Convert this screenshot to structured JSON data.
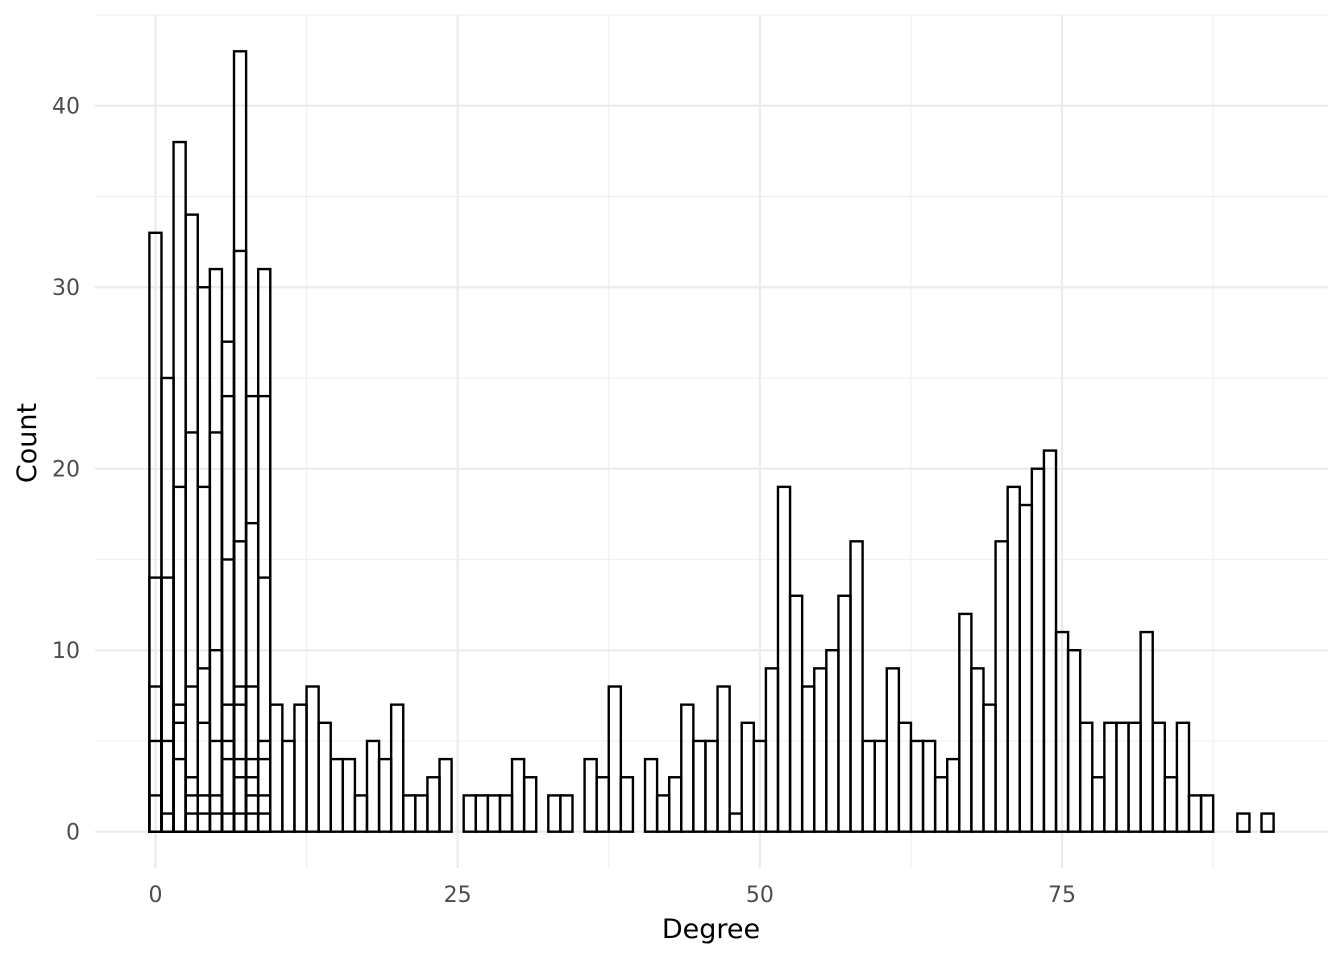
{
  "chart_data": {
    "type": "bar",
    "xlabel": "Degree",
    "ylabel": "Count",
    "xlim": [
      -5,
      97
    ],
    "ylim": [
      -2,
      45
    ],
    "x_ticks": [
      0,
      25,
      50,
      75
    ],
    "x_tick_labels": [
      "0",
      "25",
      "50",
      "75"
    ],
    "y_ticks": [
      0,
      10,
      20,
      30,
      40
    ],
    "y_tick_labels": [
      "0",
      "10",
      "20",
      "30",
      "40"
    ],
    "grid": true,
    "bar_fill": "#ffffff",
    "bar_outline": "#000000",
    "bin_width": 1,
    "bars": [
      {
        "x": 0,
        "y": 33
      },
      {
        "x": 0,
        "y": 14
      },
      {
        "x": 0,
        "y": 8
      },
      {
        "x": 0,
        "y": 5
      },
      {
        "x": 0,
        "y": 2
      },
      {
        "x": 1,
        "y": 25
      },
      {
        "x": 1,
        "y": 14
      },
      {
        "x": 1,
        "y": 5
      },
      {
        "x": 1,
        "y": 1
      },
      {
        "x": 2,
        "y": 38
      },
      {
        "x": 2,
        "y": 19
      },
      {
        "x": 2,
        "y": 7
      },
      {
        "x": 2,
        "y": 6
      },
      {
        "x": 2,
        "y": 4
      },
      {
        "x": 3,
        "y": 34
      },
      {
        "x": 3,
        "y": 22
      },
      {
        "x": 3,
        "y": 8
      },
      {
        "x": 3,
        "y": 3
      },
      {
        "x": 3,
        "y": 2
      },
      {
        "x": 3,
        "y": 1
      },
      {
        "x": 4,
        "y": 30
      },
      {
        "x": 4,
        "y": 19
      },
      {
        "x": 4,
        "y": 9
      },
      {
        "x": 4,
        "y": 6
      },
      {
        "x": 4,
        "y": 2
      },
      {
        "x": 4,
        "y": 1
      },
      {
        "x": 5,
        "y": 31
      },
      {
        "x": 5,
        "y": 22
      },
      {
        "x": 5,
        "y": 10
      },
      {
        "x": 5,
        "y": 5
      },
      {
        "x": 5,
        "y": 2
      },
      {
        "x": 5,
        "y": 1
      },
      {
        "x": 6,
        "y": 27
      },
      {
        "x": 6,
        "y": 24
      },
      {
        "x": 6,
        "y": 15
      },
      {
        "x": 6,
        "y": 7
      },
      {
        "x": 6,
        "y": 5
      },
      {
        "x": 6,
        "y": 4
      },
      {
        "x": 6,
        "y": 1
      },
      {
        "x": 7,
        "y": 43
      },
      {
        "x": 7,
        "y": 32
      },
      {
        "x": 7,
        "y": 16
      },
      {
        "x": 7,
        "y": 8
      },
      {
        "x": 7,
        "y": 7
      },
      {
        "x": 7,
        "y": 4
      },
      {
        "x": 7,
        "y": 3
      },
      {
        "x": 7,
        "y": 1
      },
      {
        "x": 8,
        "y": 24
      },
      {
        "x": 8,
        "y": 17
      },
      {
        "x": 8,
        "y": 8
      },
      {
        "x": 8,
        "y": 4
      },
      {
        "x": 8,
        "y": 3
      },
      {
        "x": 8,
        "y": 2
      },
      {
        "x": 8,
        "y": 1
      },
      {
        "x": 9,
        "y": 31
      },
      {
        "x": 9,
        "y": 24
      },
      {
        "x": 9,
        "y": 14
      },
      {
        "x": 9,
        "y": 5
      },
      {
        "x": 9,
        "y": 4
      },
      {
        "x": 9,
        "y": 2
      },
      {
        "x": 9,
        "y": 1
      },
      {
        "x": 10,
        "y": 7
      },
      {
        "x": 11,
        "y": 5
      },
      {
        "x": 12,
        "y": 7
      },
      {
        "x": 13,
        "y": 8
      },
      {
        "x": 14,
        "y": 6
      },
      {
        "x": 15,
        "y": 4
      },
      {
        "x": 16,
        "y": 4
      },
      {
        "x": 17,
        "y": 2
      },
      {
        "x": 18,
        "y": 5
      },
      {
        "x": 19,
        "y": 4
      },
      {
        "x": 20,
        "y": 7
      },
      {
        "x": 21,
        "y": 2
      },
      {
        "x": 22,
        "y": 2
      },
      {
        "x": 23,
        "y": 3
      },
      {
        "x": 24,
        "y": 4
      },
      {
        "x": 26,
        "y": 2
      },
      {
        "x": 27,
        "y": 2
      },
      {
        "x": 28,
        "y": 2
      },
      {
        "x": 29,
        "y": 2
      },
      {
        "x": 30,
        "y": 4
      },
      {
        "x": 31,
        "y": 3
      },
      {
        "x": 33,
        "y": 2
      },
      {
        "x": 34,
        "y": 2
      },
      {
        "x": 36,
        "y": 4
      },
      {
        "x": 37,
        "y": 3
      },
      {
        "x": 38,
        "y": 8
      },
      {
        "x": 39,
        "y": 3
      },
      {
        "x": 41,
        "y": 4
      },
      {
        "x": 42,
        "y": 2
      },
      {
        "x": 43,
        "y": 3
      },
      {
        "x": 44,
        "y": 7
      },
      {
        "x": 45,
        "y": 5
      },
      {
        "x": 46,
        "y": 5
      },
      {
        "x": 47,
        "y": 8
      },
      {
        "x": 48,
        "y": 1
      },
      {
        "x": 49,
        "y": 6
      },
      {
        "x": 50,
        "y": 5
      },
      {
        "x": 51,
        "y": 9
      },
      {
        "x": 52,
        "y": 19
      },
      {
        "x": 53,
        "y": 13
      },
      {
        "x": 54,
        "y": 8
      },
      {
        "x": 55,
        "y": 9
      },
      {
        "x": 56,
        "y": 10
      },
      {
        "x": 57,
        "y": 13
      },
      {
        "x": 58,
        "y": 16
      },
      {
        "x": 59,
        "y": 5
      },
      {
        "x": 60,
        "y": 5
      },
      {
        "x": 61,
        "y": 9
      },
      {
        "x": 62,
        "y": 6
      },
      {
        "x": 63,
        "y": 5
      },
      {
        "x": 64,
        "y": 5
      },
      {
        "x": 65,
        "y": 3
      },
      {
        "x": 66,
        "y": 4
      },
      {
        "x": 67,
        "y": 12
      },
      {
        "x": 68,
        "y": 9
      },
      {
        "x": 69,
        "y": 7
      },
      {
        "x": 70,
        "y": 16
      },
      {
        "x": 71,
        "y": 19
      },
      {
        "x": 72,
        "y": 18
      },
      {
        "x": 73,
        "y": 20
      },
      {
        "x": 74,
        "y": 21
      },
      {
        "x": 75,
        "y": 11
      },
      {
        "x": 76,
        "y": 10
      },
      {
        "x": 77,
        "y": 6
      },
      {
        "x": 78,
        "y": 3
      },
      {
        "x": 79,
        "y": 6
      },
      {
        "x": 80,
        "y": 6
      },
      {
        "x": 81,
        "y": 6
      },
      {
        "x": 82,
        "y": 11
      },
      {
        "x": 83,
        "y": 6
      },
      {
        "x": 84,
        "y": 3
      },
      {
        "x": 85,
        "y": 6
      },
      {
        "x": 86,
        "y": 2
      },
      {
        "x": 87,
        "y": 2
      },
      {
        "x": 90,
        "y": 1
      },
      {
        "x": 92,
        "y": 1
      }
    ]
  }
}
